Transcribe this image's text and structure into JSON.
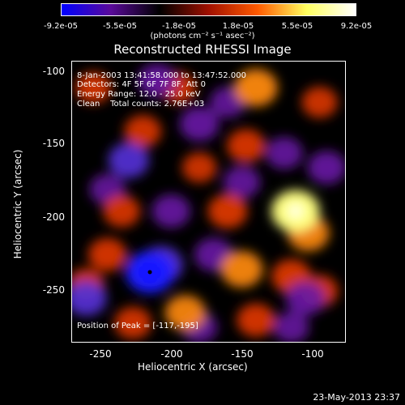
{
  "colorbar": {
    "ticks": [
      "-9.2e-05",
      "-5.5e-05",
      "-1.8e-05",
      "1.8e-05",
      "5.5e-05",
      "9.2e-05"
    ],
    "units": "(photons cm⁻² s⁻¹ asec⁻²)",
    "colors": [
      "#0000ff",
      "#5a0a9a",
      "#000000",
      "#a01000",
      "#ff5a00",
      "#ffff60",
      "#ffffff"
    ]
  },
  "plot": {
    "title": "Reconstructed RHESSI Image",
    "info_lines": [
      "8-Jan-2003 13:41:58.000 to 13:47:52.000",
      "Detectors: 4F 5F 6F 7F 8F, Att 0",
      "Energy Range: 12.0 - 25.0 keV",
      "Clean    Total counts: 2.76E+03"
    ],
    "peak_label": "Position of Peak = [-117,-195]",
    "xlabel": "Heliocentric X (arcsec)",
    "ylabel": "Heliocentric Y (arcsec)",
    "xticks": [
      "-250",
      "-200",
      "-150",
      "-100"
    ],
    "yticks": [
      "-100",
      "-150",
      "-200",
      "-250"
    ]
  },
  "timestamp": "23-May-2013 23:37",
  "chart_data": {
    "type": "heatmap",
    "title": "Reconstructed RHESSI Image",
    "xlabel": "Heliocentric X (arcsec)",
    "ylabel": "Heliocentric Y (arcsec)",
    "xlim": [
      -275,
      -82
    ],
    "ylim": [
      -285,
      -92
    ],
    "color_range": [
      -9.2e-05,
      9.2e-05
    ],
    "peak": {
      "x": -117,
      "y": -195
    },
    "blobs": [
      {
        "x": -117,
        "y": -195,
        "v": 9e-05
      },
      {
        "x": -108,
        "y": -210,
        "v": 6.5e-05
      },
      {
        "x": -145,
        "y": -110,
        "v": 7e-05
      },
      {
        "x": -152,
        "y": -150,
        "v": 5e-05
      },
      {
        "x": -165,
        "y": -195,
        "v": 5.5e-05
      },
      {
        "x": -225,
        "y": -140,
        "v": 4.5e-05
      },
      {
        "x": -260,
        "y": -110,
        "v": 4e-05
      },
      {
        "x": -200,
        "y": -110,
        "v": 4e-05
      },
      {
        "x": -195,
        "y": -265,
        "v": 6e-05
      },
      {
        "x": -155,
        "y": -235,
        "v": 6.5e-05
      },
      {
        "x": -120,
        "y": -240,
        "v": 5.5e-05
      },
      {
        "x": -100,
        "y": -250,
        "v": 4.5e-05
      },
      {
        "x": -250,
        "y": -225,
        "v": 5e-05
      },
      {
        "x": -240,
        "y": -195,
        "v": 4.5e-05
      },
      {
        "x": -265,
        "y": -245,
        "v": 4e-05
      },
      {
        "x": -145,
        "y": -270,
        "v": 5e-05
      },
      {
        "x": -232,
        "y": -272,
        "v": 4.5e-05
      },
      {
        "x": -100,
        "y": -120,
        "v": 4e-05
      },
      {
        "x": -185,
        "y": -165,
        "v": 3.5e-05
      },
      {
        "x": -220,
        "y": -237,
        "v": -9.2e-05
      },
      {
        "x": -212,
        "y": -232,
        "v": -7e-05
      },
      {
        "x": -235,
        "y": -160,
        "v": -6e-05
      },
      {
        "x": -215,
        "y": -105,
        "v": -5e-05
      },
      {
        "x": -185,
        "y": -135,
        "v": -5.5e-05
      },
      {
        "x": -205,
        "y": -195,
        "v": -5e-05
      },
      {
        "x": -175,
        "y": -225,
        "v": -5e-05
      },
      {
        "x": -155,
        "y": -175,
        "v": -4.5e-05
      },
      {
        "x": -265,
        "y": -255,
        "v": -6e-05
      },
      {
        "x": -125,
        "y": -155,
        "v": -4.5e-05
      },
      {
        "x": -95,
        "y": -165,
        "v": -5e-05
      },
      {
        "x": -110,
        "y": -255,
        "v": -5.5e-05
      },
      {
        "x": -165,
        "y": -120,
        "v": -4e-05
      },
      {
        "x": -250,
        "y": -180,
        "v": -4e-05
      },
      {
        "x": -185,
        "y": -275,
        "v": -4e-05
      },
      {
        "x": -120,
        "y": -275,
        "v": -4e-05
      }
    ]
  }
}
